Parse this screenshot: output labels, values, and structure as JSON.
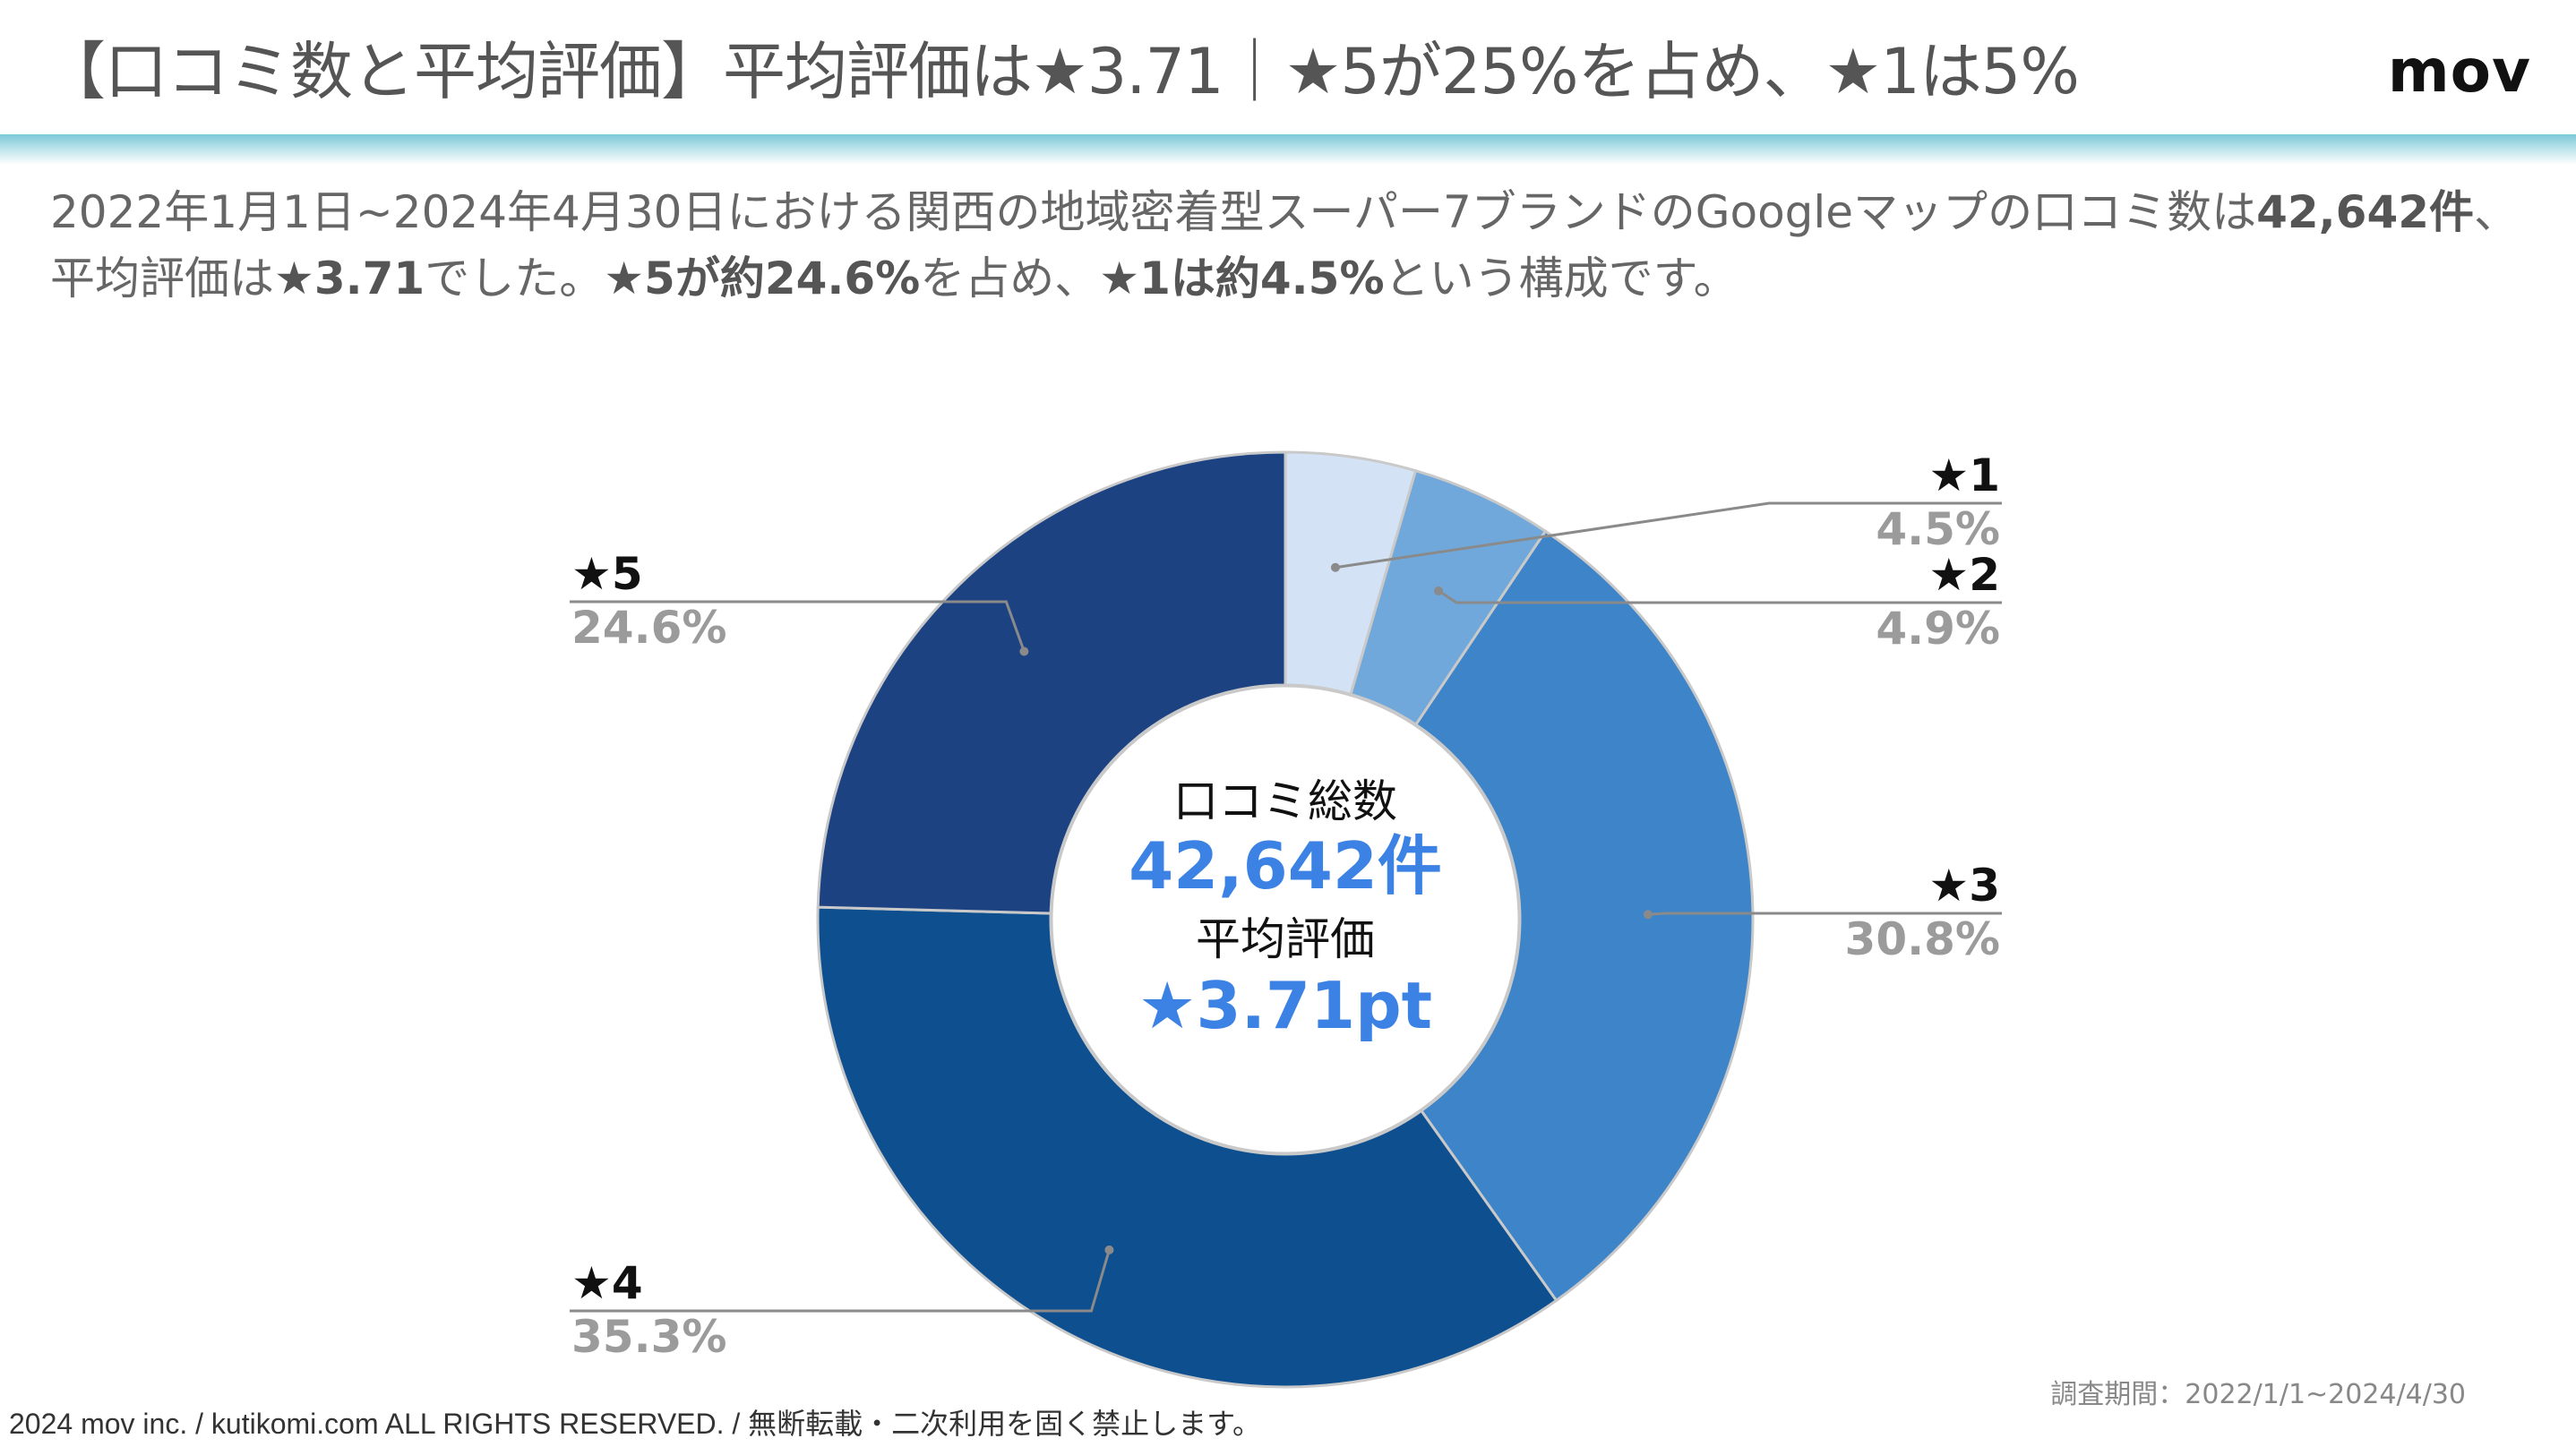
{
  "header": {
    "title": "【口コミ数と平均評価】平均評価は★3.71｜★5が25%を占め、★1は5%",
    "logo": "mov"
  },
  "description": {
    "p1": "2022年1月1日~2024年4月30日における関西の地域密着型スーパー7ブランドのGoogleマップの口コミ数は",
    "b1": "42,642件",
    "p2": "、平均評価は",
    "b2": "★3.71",
    "p3": "でした。",
    "b3": "★5が約24.6%",
    "p4": "を占め、",
    "b4": "★1は約4.5%",
    "p5": "という構成です。"
  },
  "chart_data": {
    "type": "pie",
    "donut": true,
    "categories": [
      "★1",
      "★2",
      "★3",
      "★4",
      "★5"
    ],
    "values": [
      4.5,
      4.9,
      30.8,
      35.3,
      24.6
    ],
    "value_labels": [
      "4.5%",
      "4.9%",
      "30.8%",
      "35.3%",
      "24.6%"
    ],
    "colors": [
      "#d3e3f5",
      "#70a8dc",
      "#3d84c9",
      "#0d4f8f",
      "#1c4282"
    ],
    "unit": "%",
    "center": {
      "label1": "口コミ総数",
      "value1": "42,642件",
      "label2": "平均評価",
      "value2": "★3.71pt"
    },
    "center_value_color": "#3b82e4"
  },
  "footer": {
    "copyright": "2024 mov inc. / kutikomi.com ALL RIGHTS RESERVED. / 無断転載・二次利用を固く禁止します。",
    "period": "調査期間：2022/1/1~2024/4/30"
  }
}
